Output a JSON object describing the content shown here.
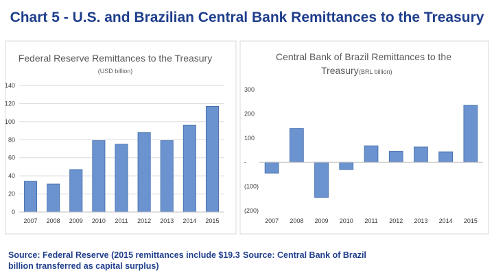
{
  "slide": {
    "title": "Chart 5 - U.S. and Brazilian Central Bank Remittances to the Treasury",
    "source_left": "Source: Federal Reserve (2015 remittances include $19.3",
    "source_left_2": "billion transferred as capital surplus)",
    "source_right": "Source: Central Bank of Brazil"
  },
  "chart_data": [
    {
      "type": "bar",
      "title": "Federal Reserve Remittances to the Treasury",
      "subtitle": "(USD billion)",
      "categories": [
        "2007",
        "2008",
        "2009",
        "2010",
        "2011",
        "2012",
        "2013",
        "2014",
        "2015"
      ],
      "values": [
        34,
        31,
        47,
        79,
        75,
        88,
        79,
        96,
        117
      ],
      "ylim": [
        0,
        140
      ],
      "yticks": [
        0,
        20,
        40,
        60,
        80,
        100,
        120,
        140
      ],
      "ytick_labels": [
        "0",
        "20",
        "40",
        "60",
        "80",
        "100",
        "120",
        "140"
      ],
      "grid": true,
      "bar_color": "#6b93cf"
    },
    {
      "type": "bar",
      "title_line1": "Central Bank of Brazil Remittances  to the",
      "title_line2": "Treasury",
      "subtitle": "(BRL billion)",
      "categories": [
        "2007",
        "2008",
        "2009",
        "2010",
        "2011",
        "2012",
        "2013",
        "2014",
        "2015"
      ],
      "values": [
        -45,
        140,
        -145,
        -30,
        68,
        45,
        63,
        43,
        235
      ],
      "ylim": [
        -200,
        300
      ],
      "yticks": [
        -200,
        -100,
        0,
        100,
        200,
        300
      ],
      "ytick_labels": [
        "(200)",
        "(100)",
        "-",
        "100",
        "200",
        "300"
      ],
      "grid": false,
      "bar_color": "#6b93cf"
    }
  ]
}
